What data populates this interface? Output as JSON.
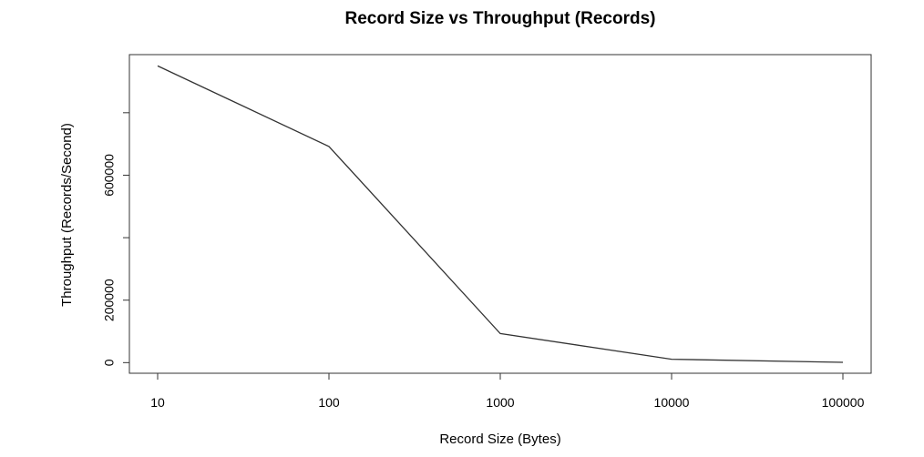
{
  "chart_data": {
    "type": "line",
    "title": "Record Size vs Throughput (Records)",
    "xlabel": "Record Size (Bytes)",
    "ylabel": "Throughput (Records/Second)",
    "x_scale": "log",
    "x": [
      10,
      100,
      1000,
      10000,
      100000
    ],
    "x_tick_labels": [
      "10",
      "100",
      "1000",
      "10000",
      "100000"
    ],
    "y_ticks": [
      0,
      200000,
      400000,
      600000,
      800000
    ],
    "y_tick_labels": [
      "0",
      "200000",
      "",
      "600000",
      ""
    ],
    "ylim": [
      -34000,
      986000
    ],
    "series": [
      {
        "name": "",
        "values": [
          950000,
          692000,
          93000,
          11000,
          1000
        ],
        "color": "#333333"
      }
    ],
    "grid": false,
    "legend": "none"
  }
}
